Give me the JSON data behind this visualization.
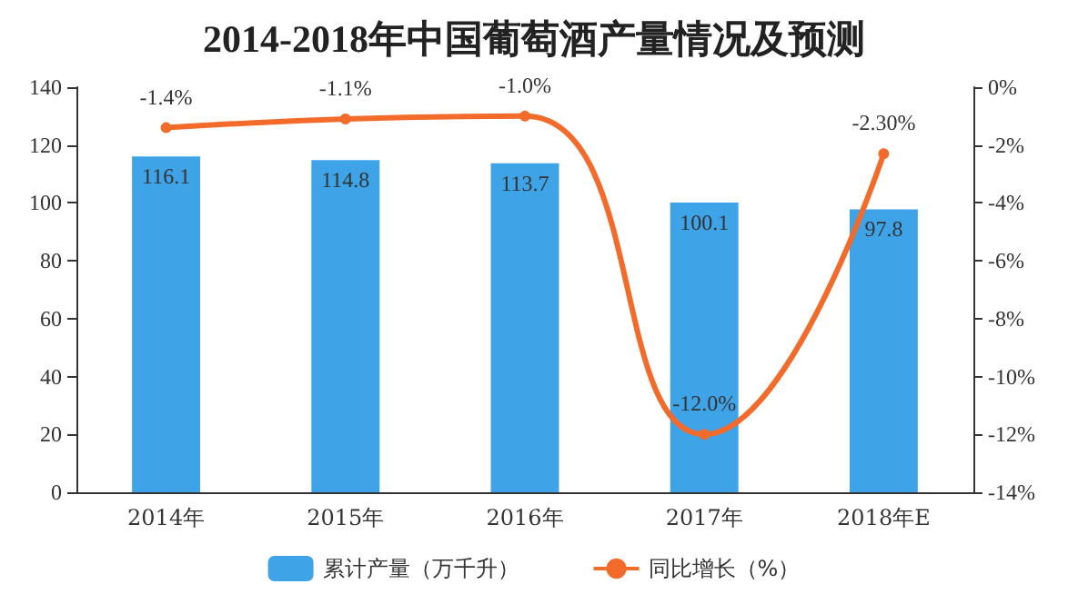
{
  "chart_data": {
    "type": "bar",
    "title": "2014-2018年中国葡萄酒产量情况及预测",
    "categories": [
      "2014年",
      "2015年",
      "2016年",
      "2017年",
      "2018年E"
    ],
    "series": [
      {
        "name": "累计产量（万千升）",
        "color": "#3fa3e8",
        "values": [
          116.1,
          114.8,
          113.7,
          100.1,
          97.8
        ],
        "value_labels": [
          "116.1",
          "114.8",
          "113.7",
          "100.1",
          "97.8"
        ]
      },
      {
        "name": "同比增长（%）",
        "type": "line",
        "axis": "y2",
        "color": "#f26b2a",
        "marker": "circle",
        "values": [
          -1.4,
          -1.1,
          -1.0,
          -12.0,
          -2.3
        ],
        "value_labels": [
          "-1.4%",
          "-1.1%",
          "-1.0%",
          "-12.0%",
          "-2.30%"
        ]
      }
    ],
    "ylim": [
      0,
      140
    ],
    "yticks": [
      0,
      20,
      40,
      60,
      80,
      100,
      120,
      140
    ],
    "y2lim": [
      -14,
      0
    ],
    "y2ticks": [
      {
        "value": -14,
        "label": "-14%"
      },
      {
        "value": -12,
        "label": "-12%"
      },
      {
        "value": -10,
        "label": "-10%"
      },
      {
        "value": -8,
        "label": "-8%"
      },
      {
        "value": -6,
        "label": "-6%"
      },
      {
        "value": -4,
        "label": "-4%"
      },
      {
        "value": -2,
        "label": "-2%"
      },
      {
        "value": 0,
        "label": "0%"
      }
    ],
    "grid": false,
    "legend": "bottom"
  }
}
